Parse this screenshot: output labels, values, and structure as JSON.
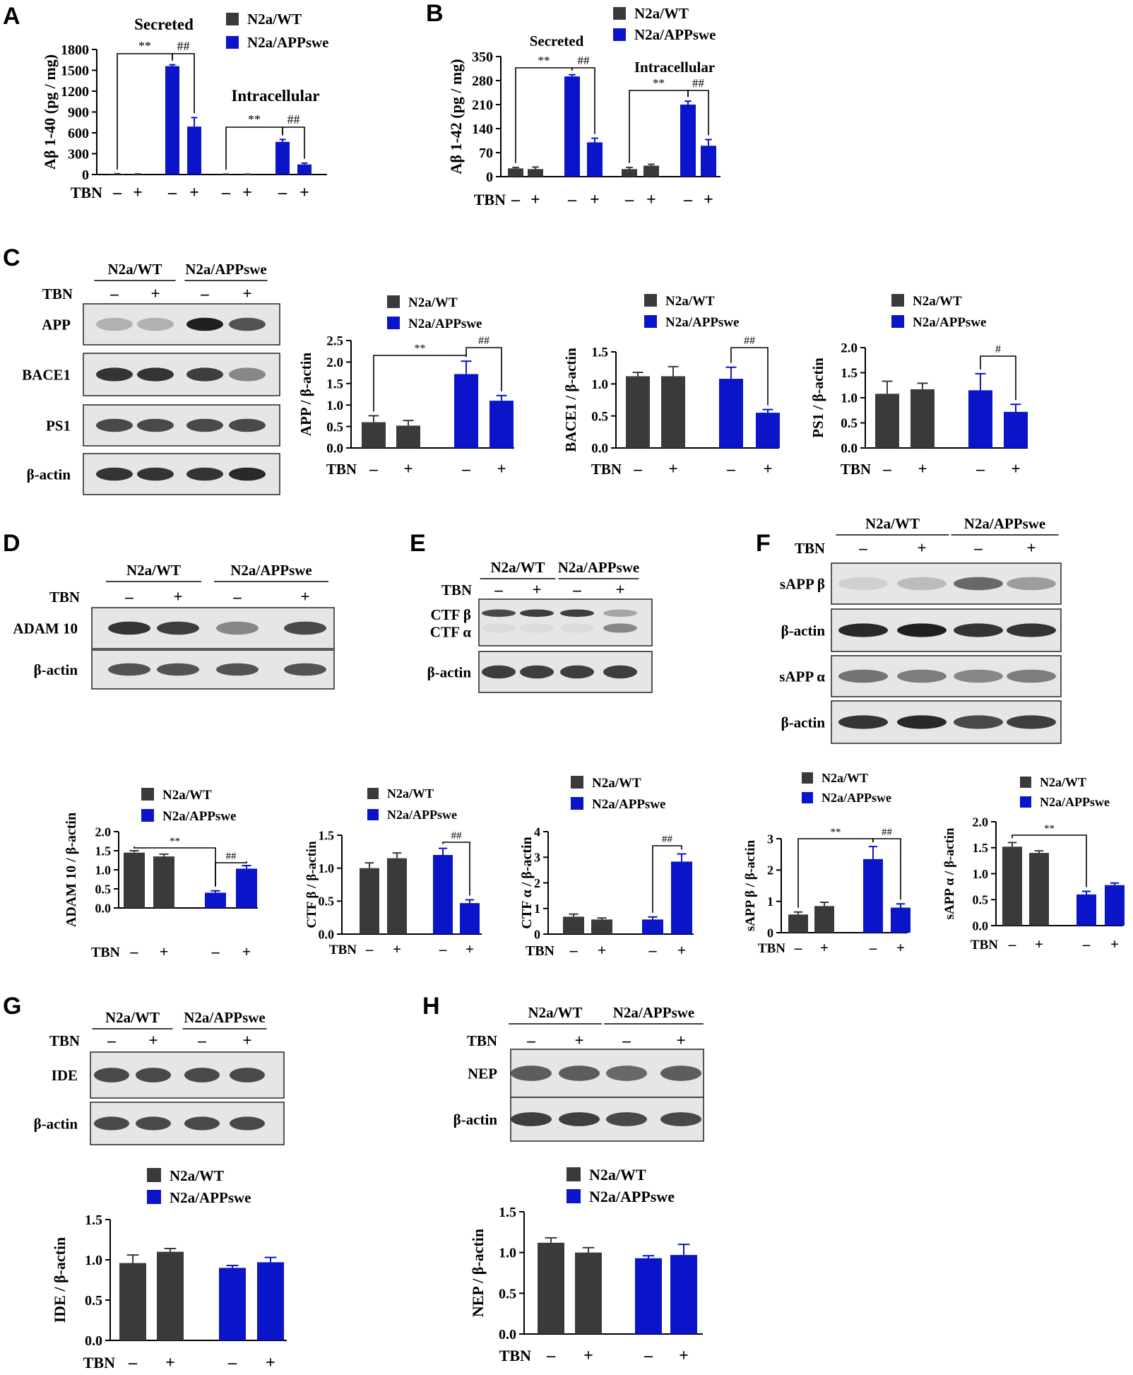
{
  "colors": {
    "wt": "#3a3a3a",
    "swe": "#0a14c8",
    "axis": "#000000",
    "blot_bg": "#e6e6e6",
    "band": "#141414"
  },
  "groups": {
    "wt": "N2a/WT",
    "swe": "N2a/APPswe"
  },
  "legend": {
    "wt": "N2a/WT",
    "swe": "N2a/APPswe"
  },
  "tbn": {
    "label": "TBN",
    "minus": "–",
    "plus": "+"
  },
  "panels": {
    "A": "A",
    "B": "B",
    "C": "C",
    "D": "D",
    "E": "E",
    "F": "F",
    "G": "G",
    "H": "H"
  },
  "chart_data": [
    {
      "id": "A",
      "type": "bar",
      "ylabel": "Aβ 1-40 (pg / mg)",
      "yticks": [
        0,
        300,
        600,
        900,
        1200,
        1500,
        1800
      ],
      "ylim": [
        0,
        1800
      ],
      "groups": [
        "Secreted",
        "Intracellular"
      ],
      "categories": [
        "WT −",
        "WT +",
        "APPswe −",
        "APPswe +",
        "WT −",
        "WT +",
        "APPswe −",
        "APPswe +"
      ],
      "values": [
        8,
        6,
        1560,
        690,
        5,
        4,
        470,
        145
      ],
      "errors": [
        4,
        3,
        20,
        130,
        2,
        2,
        35,
        20
      ],
      "series_index": [
        0,
        0,
        1,
        1,
        0,
        0,
        1,
        1
      ],
      "annotations": [
        {
          "text": "**",
          "from": 0,
          "to": 2
        },
        {
          "text": "##",
          "from": 2,
          "to": 3
        },
        {
          "text": "**",
          "from": 4,
          "to": 6
        },
        {
          "text": "##",
          "from": 6,
          "to": 7
        }
      ]
    },
    {
      "id": "B",
      "type": "bar",
      "ylabel": "Aβ 1-42 (pg / mg)",
      "yticks": [
        0,
        70,
        140,
        210,
        280,
        350
      ],
      "ylim": [
        0,
        350
      ],
      "groups": [
        "Secreted",
        "Intracellular"
      ],
      "categories": [
        "WT −",
        "WT +",
        "APPswe −",
        "APPswe +",
        "WT −",
        "WT +",
        "APPswe −",
        "APPswe +"
      ],
      "values": [
        24,
        22,
        292,
        100,
        22,
        32,
        210,
        90
      ],
      "errors": [
        3,
        6,
        5,
        12,
        5,
        4,
        10,
        18
      ],
      "series_index": [
        0,
        0,
        1,
        1,
        0,
        0,
        1,
        1
      ],
      "annotations": [
        {
          "text": "**",
          "from": 0,
          "to": 2
        },
        {
          "text": "##",
          "from": 2,
          "to": 3
        },
        {
          "text": "**",
          "from": 4,
          "to": 6
        },
        {
          "text": "##",
          "from": 6,
          "to": 7
        }
      ]
    },
    {
      "id": "C1",
      "type": "bar",
      "ylabel": "APP / β-actin",
      "yticks": [
        0,
        0.5,
        1.0,
        1.5,
        2.0,
        2.5
      ],
      "ytick_labels": [
        "0.0",
        "0.5",
        "1.0",
        "1.5",
        "2.0",
        "2.5"
      ],
      "ylim": [
        0,
        2.5
      ],
      "categories": [
        "WT −",
        "WT +",
        "APPswe −",
        "APPswe +"
      ],
      "values": [
        0.6,
        0.52,
        1.72,
        1.1
      ],
      "errors": [
        0.15,
        0.12,
        0.3,
        0.12
      ],
      "series_index": [
        0,
        0,
        1,
        1
      ],
      "annotations": [
        {
          "text": "**",
          "from": 0,
          "to": 2
        },
        {
          "text": "##",
          "from": 2,
          "to": 3
        }
      ]
    },
    {
      "id": "C2",
      "type": "bar",
      "ylabel": "BACE1 / β-actin",
      "yticks": [
        0,
        0.5,
        1.0,
        1.5
      ],
      "ytick_labels": [
        "0.0",
        "0.5",
        "1.0",
        "1.5"
      ],
      "ylim": [
        0,
        1.5
      ],
      "categories": [
        "WT −",
        "WT +",
        "APPswe −",
        "APPswe +"
      ],
      "values": [
        1.12,
        1.12,
        1.08,
        0.55
      ],
      "errors": [
        0.06,
        0.15,
        0.18,
        0.05
      ],
      "series_index": [
        0,
        0,
        1,
        1
      ],
      "annotations": [
        {
          "text": "##",
          "from": 2,
          "to": 3
        }
      ]
    },
    {
      "id": "C3",
      "type": "bar",
      "ylabel": "PS1 / β-actin",
      "yticks": [
        0,
        0.5,
        1.0,
        1.5,
        2.0
      ],
      "ytick_labels": [
        "0.0",
        "0.5",
        "1.0",
        "1.5",
        "2.0"
      ],
      "ylim": [
        0,
        2.0
      ],
      "categories": [
        "WT −",
        "WT +",
        "APPswe −",
        "APPswe +"
      ],
      "values": [
        1.08,
        1.17,
        1.15,
        0.72
      ],
      "errors": [
        0.25,
        0.12,
        0.33,
        0.15
      ],
      "series_index": [
        0,
        0,
        1,
        1
      ],
      "annotations": [
        {
          "text": "#",
          "from": 2,
          "to": 3
        }
      ]
    },
    {
      "id": "D1",
      "type": "bar",
      "ylabel": "ADAM 10 / β-actin",
      "yticks": [
        0,
        0.5,
        1.0,
        1.5,
        2.0
      ],
      "ytick_labels": [
        "0.0",
        "0.5",
        "1.0",
        "1.5",
        "2.0"
      ],
      "ylim": [
        0,
        2.0
      ],
      "categories": [
        "WT −",
        "WT +",
        "APPswe −",
        "APPswe +"
      ],
      "values": [
        1.45,
        1.35,
        0.4,
        1.03
      ],
      "errors": [
        0.05,
        0.06,
        0.05,
        0.08
      ],
      "series_index": [
        0,
        0,
        1,
        1
      ],
      "annotations": [
        {
          "text": "**",
          "from": 0,
          "to": 2
        },
        {
          "text": "##",
          "from": 2,
          "to": 3
        }
      ]
    },
    {
      "id": "E1",
      "type": "bar",
      "ylabel": "CTF β / β-actin",
      "yticks": [
        0,
        0.5,
        1.0,
        1.5
      ],
      "ytick_labels": [
        "0.0",
        "0.5",
        "1.0",
        "1.5"
      ],
      "ylim": [
        0,
        1.5
      ],
      "categories": [
        "WT −",
        "WT +",
        "APPswe −",
        "APPswe +"
      ],
      "values": [
        1.0,
        1.15,
        1.2,
        0.47
      ],
      "errors": [
        0.08,
        0.08,
        0.1,
        0.05
      ],
      "series_index": [
        0,
        0,
        1,
        1
      ],
      "annotations": [
        {
          "text": "##",
          "from": 2,
          "to": 3
        }
      ]
    },
    {
      "id": "E2",
      "type": "bar",
      "ylabel": "CTF α / β-actin",
      "yticks": [
        0,
        1,
        2,
        3,
        4
      ],
      "ytick_labels": [
        "0",
        "1",
        "2",
        "3",
        "4"
      ],
      "ylim": [
        0,
        4
      ],
      "categories": [
        "WT −",
        "WT +",
        "APPswe −",
        "APPswe +"
      ],
      "values": [
        0.68,
        0.57,
        0.57,
        2.83
      ],
      "errors": [
        0.1,
        0.06,
        0.1,
        0.3
      ],
      "series_index": [
        0,
        0,
        1,
        1
      ],
      "annotations": [
        {
          "text": "##",
          "from": 2,
          "to": 3
        }
      ]
    },
    {
      "id": "F1",
      "type": "bar",
      "ylabel": "sAPP β / β-actin",
      "yticks": [
        0,
        1,
        2,
        3
      ],
      "ytick_labels": [
        "0",
        "1",
        "2",
        "3"
      ],
      "ylim": [
        0,
        3
      ],
      "categories": [
        "WT −",
        "WT +",
        "APPswe −",
        "APPswe +"
      ],
      "values": [
        0.58,
        0.85,
        2.35,
        0.8
      ],
      "errors": [
        0.08,
        0.12,
        0.4,
        0.12
      ],
      "series_index": [
        0,
        0,
        1,
        1
      ],
      "annotations": [
        {
          "text": "**",
          "from": 0,
          "to": 2
        },
        {
          "text": "##",
          "from": 2,
          "to": 3
        }
      ]
    },
    {
      "id": "F2",
      "type": "bar",
      "ylabel": "sAPP α / β-actin",
      "yticks": [
        0,
        0.5,
        1.0,
        1.5,
        2.0
      ],
      "ytick_labels": [
        "0.0",
        "0.5",
        "1.0",
        "1.5",
        "2.0"
      ],
      "ylim": [
        0,
        2.0
      ],
      "categories": [
        "WT −",
        "WT +",
        "APPswe −",
        "APPswe +"
      ],
      "values": [
        1.52,
        1.4,
        0.6,
        0.78
      ],
      "errors": [
        0.08,
        0.04,
        0.06,
        0.04
      ],
      "series_index": [
        0,
        0,
        1,
        1
      ],
      "annotations": [
        {
          "text": "**",
          "from": 0,
          "to": 2
        }
      ]
    },
    {
      "id": "G1",
      "type": "bar",
      "ylabel": "IDE / β-actin",
      "yticks": [
        0,
        0.5,
        1.0,
        1.5
      ],
      "ytick_labels": [
        "0.0",
        "0.5",
        "1.0",
        "1.5"
      ],
      "ylim": [
        0,
        1.5
      ],
      "categories": [
        "WT −",
        "WT +",
        "APPswe −",
        "APPswe +"
      ],
      "values": [
        0.96,
        1.1,
        0.9,
        0.97
      ],
      "errors": [
        0.1,
        0.04,
        0.03,
        0.06
      ],
      "series_index": [
        0,
        0,
        1,
        1
      ],
      "annotations": []
    },
    {
      "id": "H1",
      "type": "bar",
      "ylabel": "NEP / β-actin",
      "yticks": [
        0,
        0.5,
        1.0,
        1.5
      ],
      "ytick_labels": [
        "0.0",
        "0.5",
        "1.0",
        "1.5"
      ],
      "ylim": [
        0,
        1.5
      ],
      "categories": [
        "WT −",
        "WT +",
        "APPswe −",
        "APPswe +"
      ],
      "values": [
        1.12,
        1.0,
        0.93,
        0.97
      ],
      "errors": [
        0.06,
        0.06,
        0.03,
        0.13
      ],
      "series_index": [
        0,
        0,
        1,
        1
      ],
      "annotations": []
    }
  ],
  "blots": [
    {
      "id": "C",
      "rows": [
        {
          "label": "APP",
          "bands": [
            0.25,
            0.25,
            0.95,
            0.7
          ]
        },
        {
          "label": "BACE1",
          "bands": [
            0.85,
            0.85,
            0.8,
            0.45
          ]
        },
        {
          "label": "PS1",
          "bands": [
            0.75,
            0.75,
            0.75,
            0.75
          ]
        },
        {
          "label": "β-actin",
          "bands": [
            0.85,
            0.85,
            0.85,
            0.9
          ]
        }
      ]
    },
    {
      "id": "D",
      "rows": [
        {
          "label": "ADAM 10",
          "bands": [
            0.85,
            0.8,
            0.45,
            0.75
          ]
        },
        {
          "label": "β-actin",
          "bands": [
            0.7,
            0.7,
            0.7,
            0.7
          ]
        }
      ]
    },
    {
      "id": "E",
      "rows": [
        {
          "label": "CTF β",
          "label2": "CTF α",
          "bands": [
            0.75,
            0.8,
            0.8,
            0.3
          ],
          "bands2": [
            0.05,
            0.05,
            0.05,
            0.45
          ]
        },
        {
          "label": "β-actin",
          "bands": [
            0.8,
            0.8,
            0.8,
            0.8
          ]
        }
      ]
    },
    {
      "id": "F",
      "rows": [
        {
          "label": "sAPP β",
          "bands": [
            0.1,
            0.2,
            0.6,
            0.35
          ]
        },
        {
          "label": "β-actin",
          "bands": [
            0.9,
            0.95,
            0.85,
            0.85
          ]
        },
        {
          "label": "sAPP α",
          "bands": [
            0.55,
            0.5,
            0.45,
            0.5
          ]
        },
        {
          "label": "β-actin",
          "bands": [
            0.85,
            0.9,
            0.75,
            0.8
          ]
        }
      ]
    },
    {
      "id": "G",
      "rows": [
        {
          "label": "IDE",
          "bands": [
            0.75,
            0.75,
            0.75,
            0.75
          ]
        },
        {
          "label": "β-actin",
          "bands": [
            0.75,
            0.75,
            0.75,
            0.75
          ]
        }
      ]
    },
    {
      "id": "H",
      "rows": [
        {
          "label": "NEP",
          "bands": [
            0.65,
            0.65,
            0.6,
            0.65
          ]
        },
        {
          "label": "β-actin",
          "bands": [
            0.8,
            0.8,
            0.75,
            0.75
          ]
        }
      ]
    }
  ]
}
